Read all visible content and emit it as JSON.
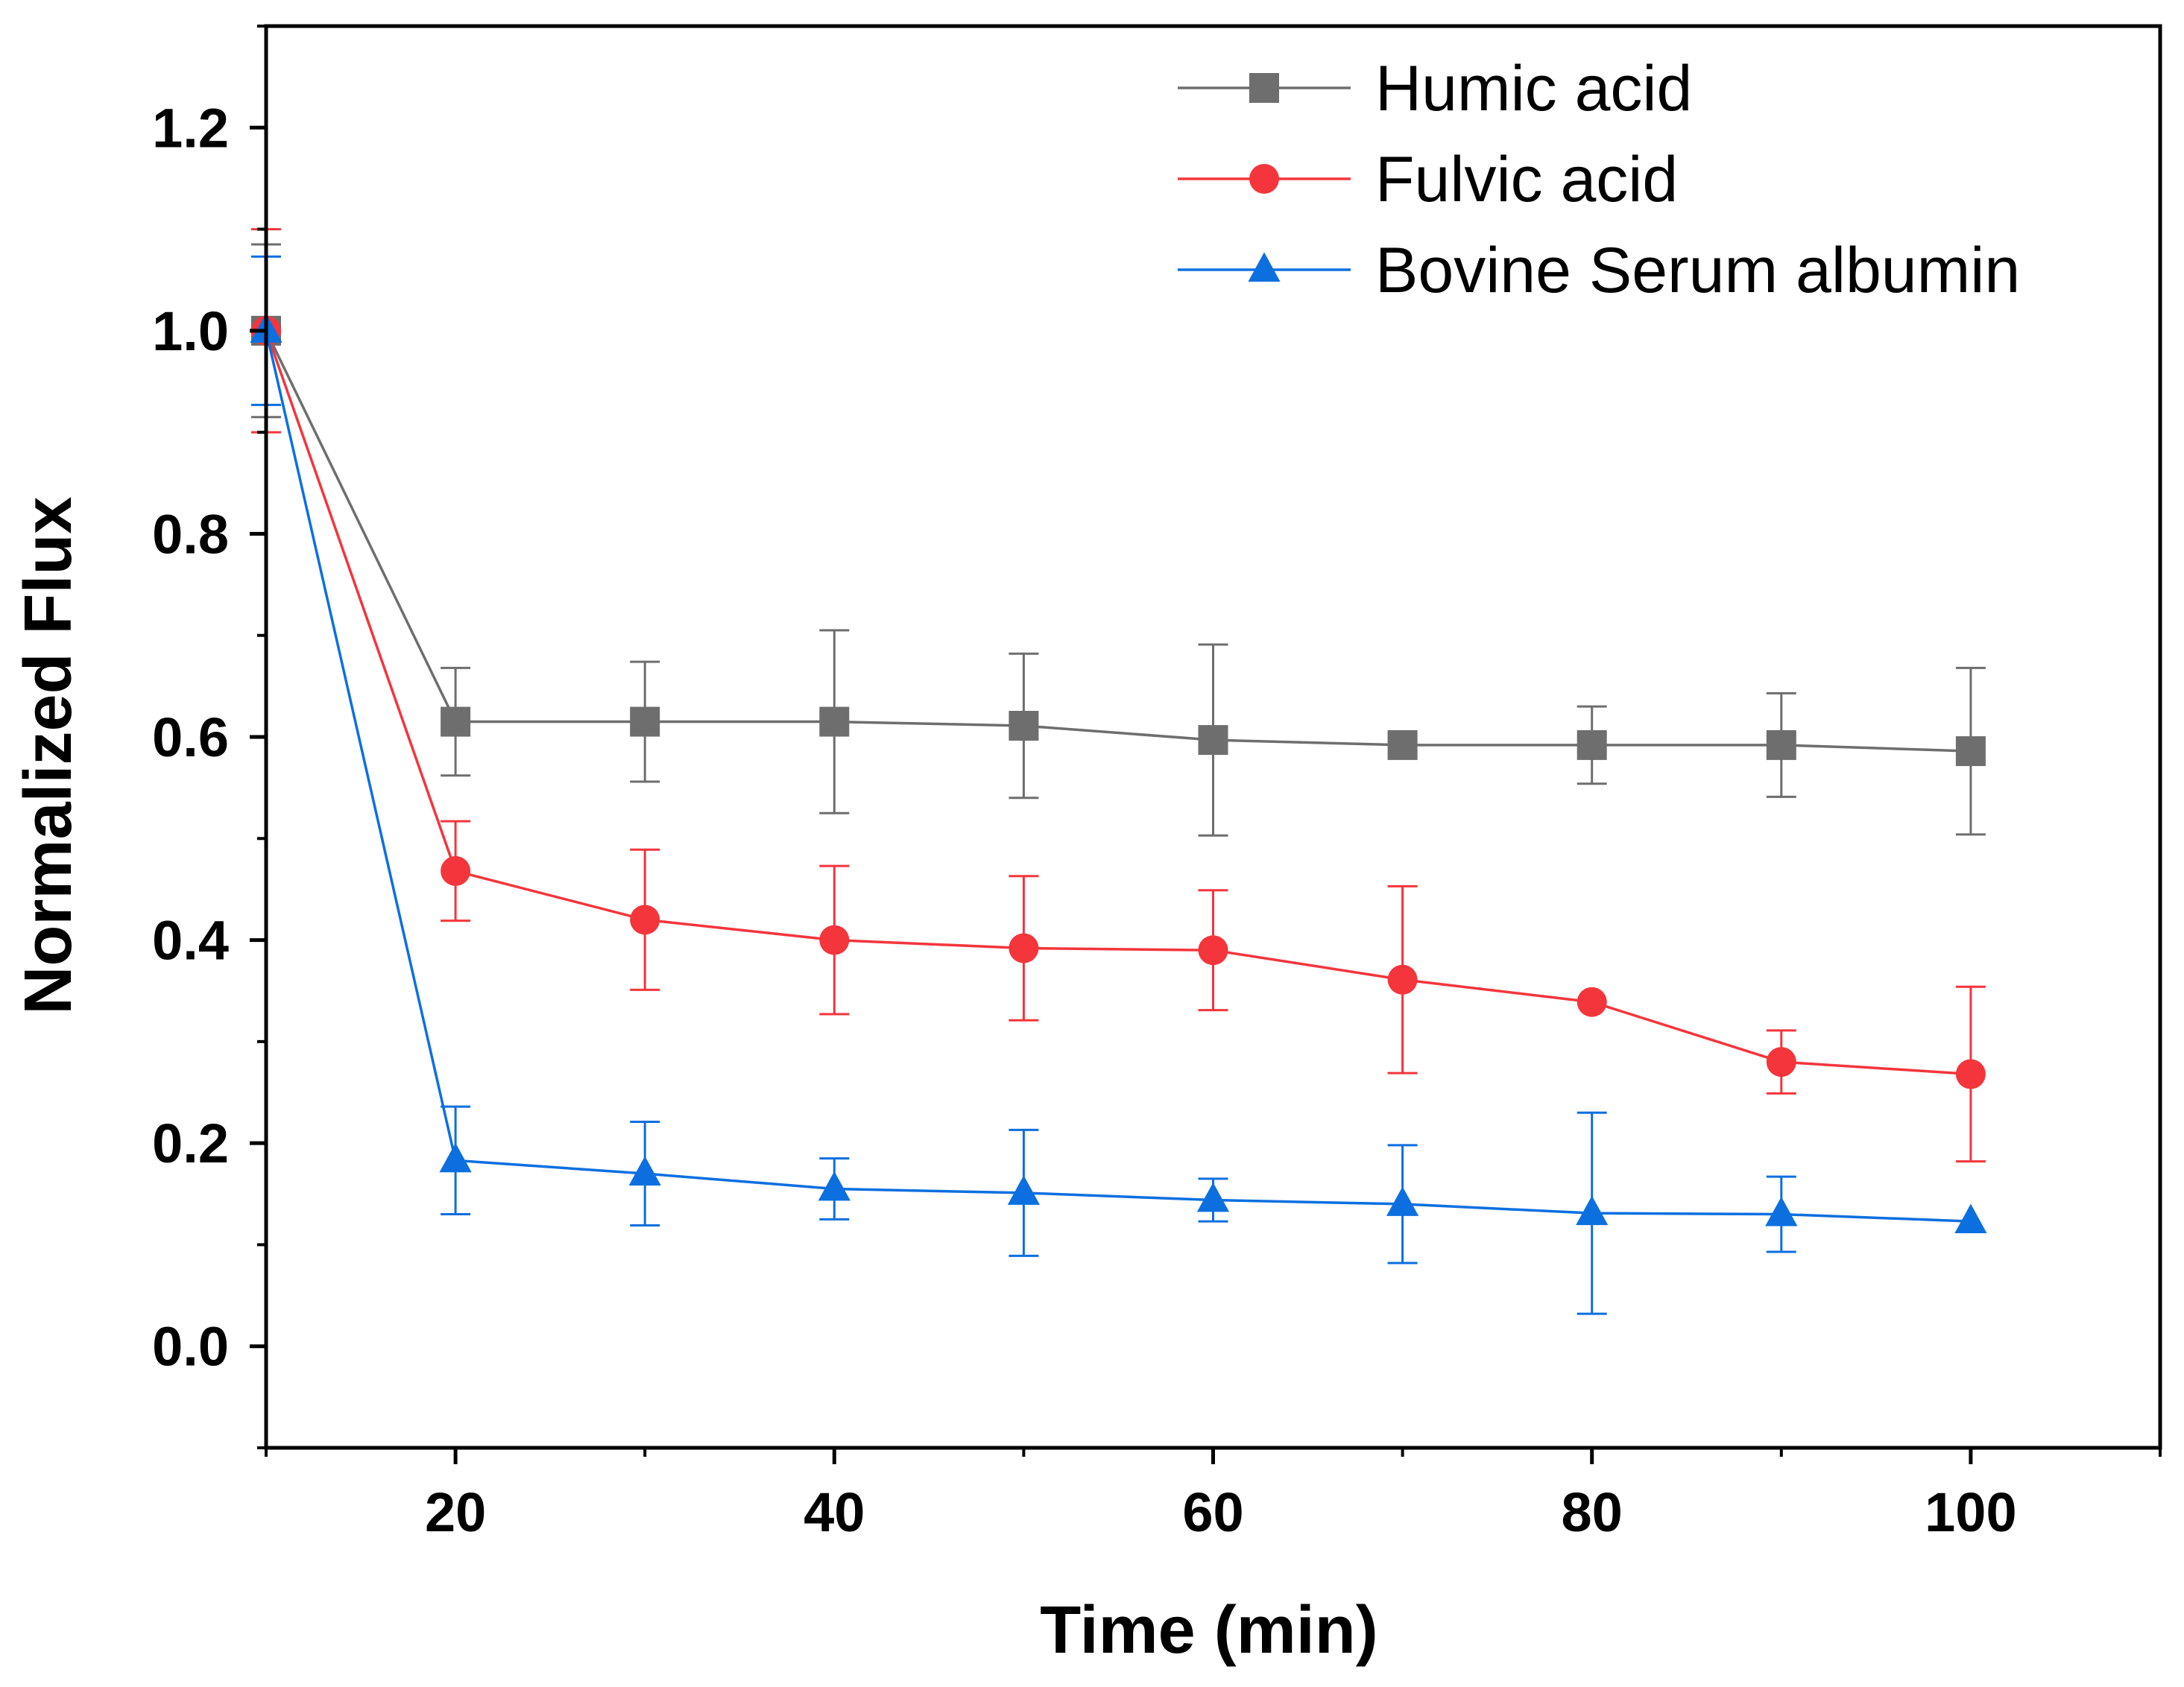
{
  "chart_data": {
    "type": "line",
    "title": "",
    "xlabel": "Time (min)",
    "ylabel": "Normalized Flux",
    "xlim": [
      10,
      110
    ],
    "ylim": [
      -0.1,
      1.3
    ],
    "xticks": [
      20,
      40,
      60,
      80,
      100
    ],
    "xtick_labels": [
      "20",
      "40",
      "60",
      "80",
      "100"
    ],
    "x_minor_ticks": [
      10,
      30,
      50,
      70,
      90,
      110
    ],
    "yticks": [
      0.0,
      0.2,
      0.4,
      0.6,
      0.8,
      1.0,
      1.2
    ],
    "ytick_labels": [
      "0.0",
      "0.2",
      "0.4",
      "0.6",
      "0.8",
      "1.0",
      "1.2"
    ],
    "y_minor_ticks": [
      -0.1,
      0.1,
      0.3,
      0.5,
      0.7,
      0.9,
      1.1,
      1.3
    ],
    "grid": false,
    "legend_position": "top-right",
    "x": [
      10,
      20,
      30,
      40,
      50,
      60,
      70,
      80,
      90,
      100
    ],
    "series": [
      {
        "name": "Humic acid",
        "color": "#6e6e6e",
        "marker": "square",
        "values": [
          1.0,
          0.615,
          0.615,
          0.615,
          0.611,
          0.597,
          0.592,
          0.592,
          0.592,
          0.586
        ],
        "errors": [
          0.085,
          0.053,
          0.059,
          0.09,
          0.071,
          0.094,
          0.0,
          0.038,
          0.051,
          0.082
        ]
      },
      {
        "name": "Fulvic acid",
        "color": "#f4353c",
        "marker": "circle",
        "values": [
          1.0,
          0.468,
          0.42,
          0.4,
          0.392,
          0.39,
          0.361,
          0.339,
          0.28,
          0.268
        ],
        "errors": [
          0.1,
          0.049,
          0.069,
          0.073,
          0.071,
          0.059,
          0.092,
          0.0,
          0.031,
          0.086
        ]
      },
      {
        "name": "Bovine Serum albumin",
        "color": "#0c6fe0",
        "marker": "triangle",
        "values": [
          1.0,
          0.183,
          0.17,
          0.155,
          0.151,
          0.144,
          0.14,
          0.131,
          0.13,
          0.123
        ],
        "errors": [
          0.073,
          0.053,
          0.051,
          0.03,
          0.062,
          0.021,
          0.058,
          0.099,
          0.037,
          0.0
        ]
      }
    ]
  }
}
